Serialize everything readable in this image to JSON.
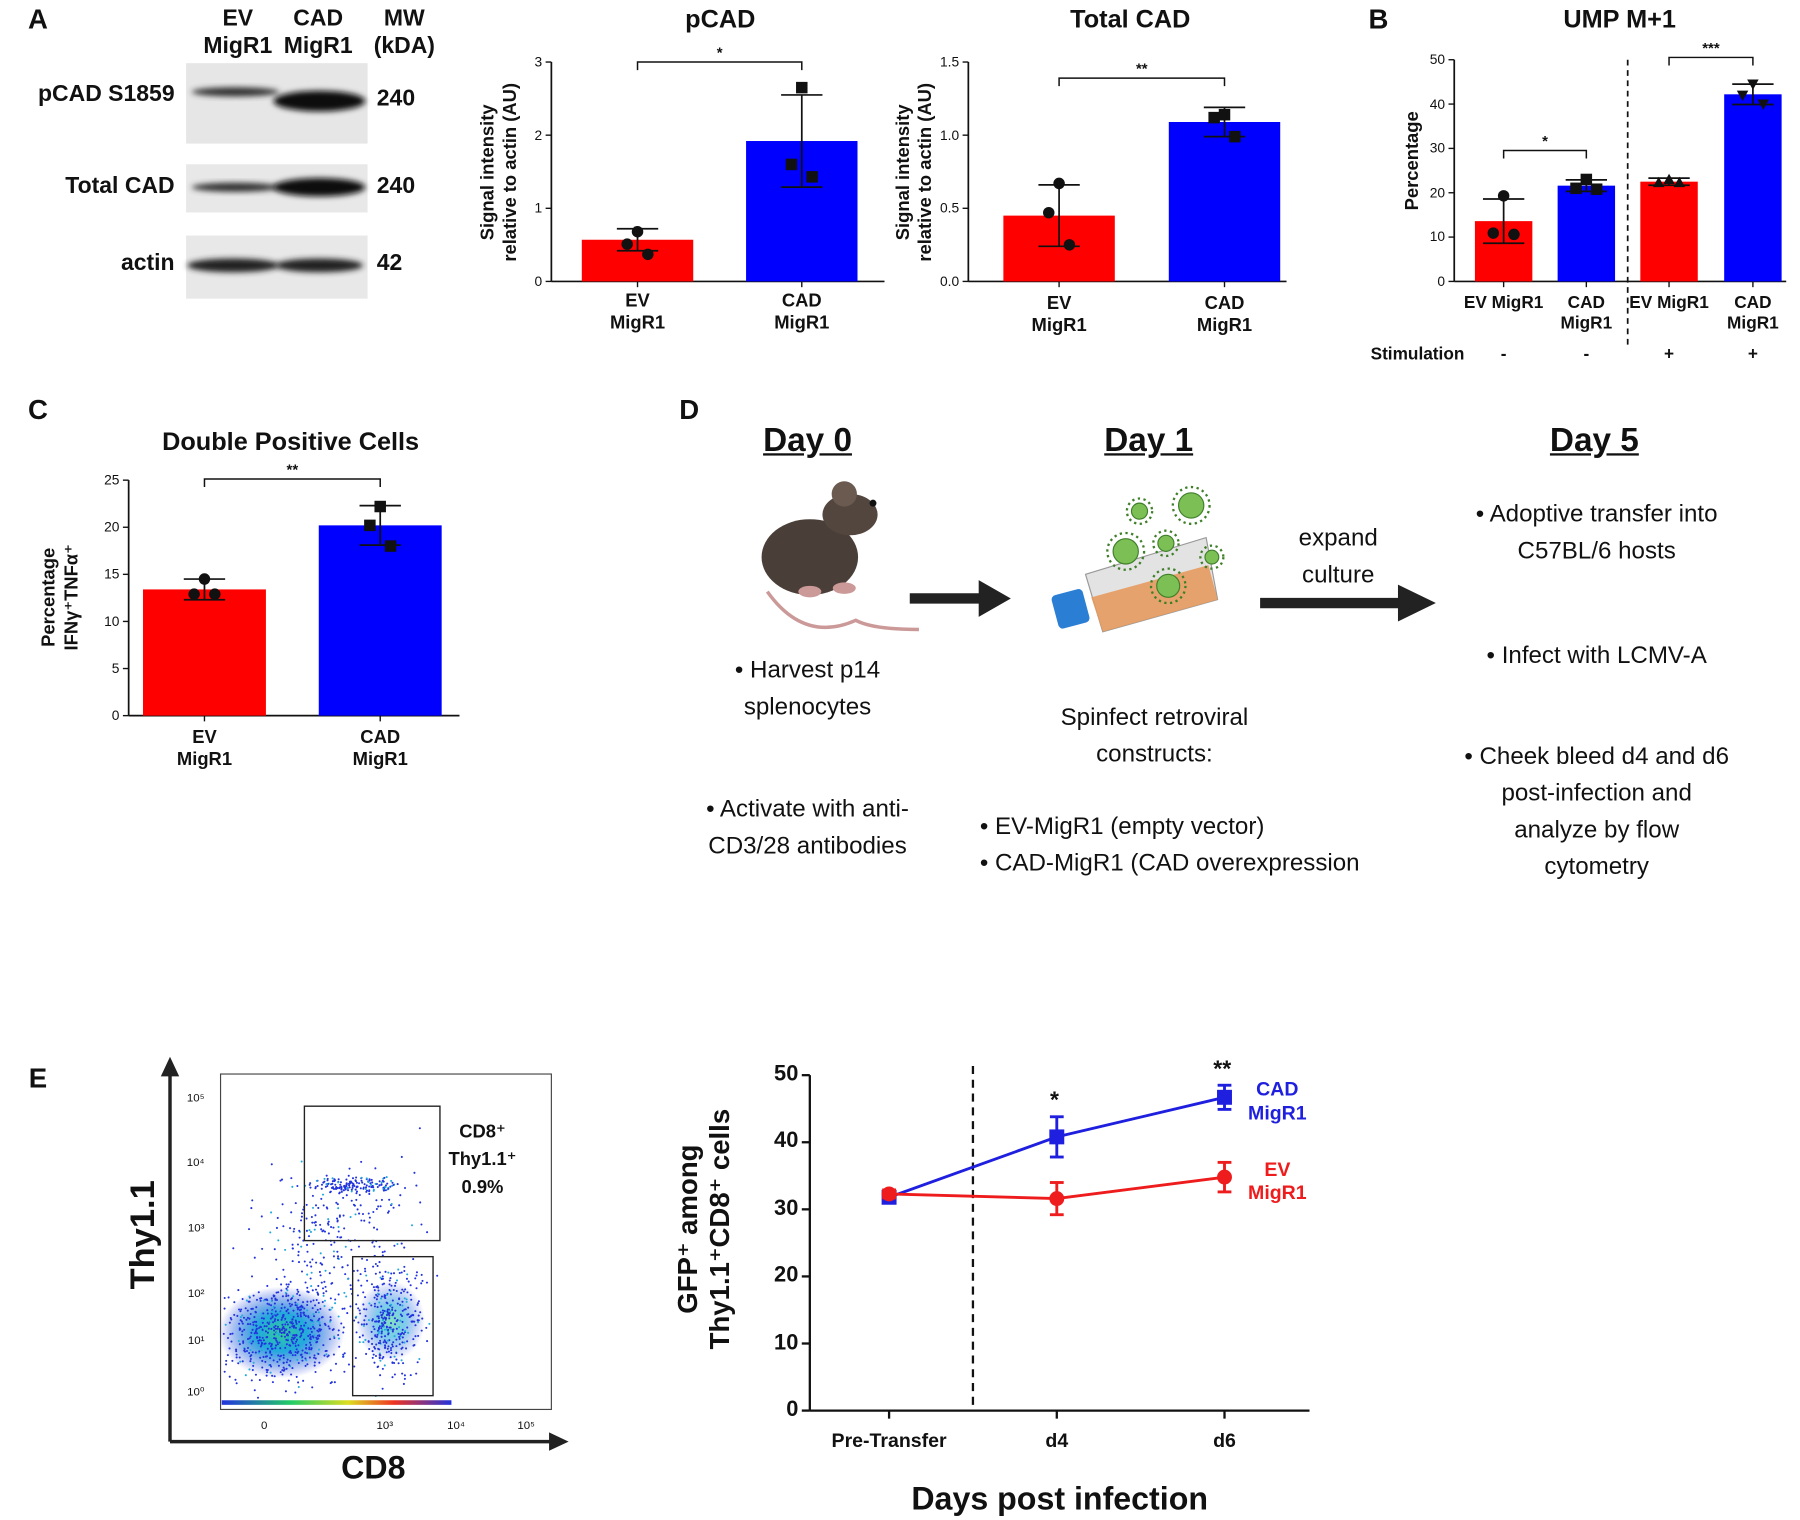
{
  "panel_letters": [
    "A",
    "B",
    "C",
    "D",
    "E"
  ],
  "blot": {
    "lanes": [
      "EV MigR1",
      "CAD MigR1"
    ],
    "mw_header": "MW (kDA)",
    "rows": [
      {
        "label": "pCAD S1859",
        "mw": 240
      },
      {
        "label": "Total CAD",
        "mw": 240
      },
      {
        "label": "actin",
        "mw": 42
      }
    ]
  },
  "chart_data": [
    {
      "type": "bar",
      "title": "pCAD",
      "ylabel": [
        "Signal intensity",
        "relative to actin (AU)"
      ],
      "categories": [
        "EV MigR1",
        "CAD MigR1"
      ],
      "values": [
        0.57,
        1.92
      ],
      "errors": [
        0.15,
        0.63
      ],
      "points": [
        [
          0.68,
          0.51,
          0.37
        ],
        [
          2.65,
          1.6,
          1.43
        ]
      ],
      "markers": [
        "circle",
        "square"
      ],
      "colors": [
        "#ff0000",
        "#0000ff"
      ],
      "ylim": [
        0,
        3
      ],
      "yticks": [
        0,
        1,
        2,
        3
      ],
      "significance": [
        {
          "between": [
            0,
            1
          ],
          "label": "*"
        }
      ]
    },
    {
      "type": "bar",
      "title": "Total CAD",
      "ylabel": [
        "Signal intensity",
        "relative to actin (AU)"
      ],
      "categories": [
        "EV MigR1",
        "CAD MigR1"
      ],
      "values": [
        0.45,
        1.09
      ],
      "errors": [
        0.21,
        0.1
      ],
      "points": [
        [
          0.67,
          0.47,
          0.25
        ],
        [
          1.14,
          1.12,
          0.99
        ]
      ],
      "markers": [
        "circle",
        "square"
      ],
      "colors": [
        "#ff0000",
        "#0000ff"
      ],
      "ylim": [
        0,
        1.5
      ],
      "yticks": [
        {
          "value": 0,
          "label": "0.0"
        },
        0.5,
        {
          "value": 1,
          "label": "1.0"
        },
        1.5
      ],
      "significance": [
        {
          "between": [
            0,
            1
          ],
          "label": "**"
        }
      ]
    },
    {
      "type": "bar",
      "title": "UMP M+1",
      "ylabel": "Percentage",
      "categories": [
        "EV MigR1",
        "CAD MigR1",
        "EV MigR1",
        "CAD MigR1"
      ],
      "values": [
        13.6,
        21.6,
        22.5,
        42.2
      ],
      "errors": [
        5.0,
        1.3,
        0.8,
        2.3
      ],
      "points": [
        [
          19.3,
          10.9,
          10.6
        ],
        [
          23.0,
          21.0,
          20.8
        ],
        [
          23.0,
          22.3,
          22.3
        ],
        [
          44.5,
          42.0,
          40.0
        ]
      ],
      "markers": [
        "circle",
        "square",
        "triangle",
        "triangle-down"
      ],
      "colors": [
        "#ff0000",
        "#0000ff",
        "#ff0000",
        "#0000ff"
      ],
      "ylim": [
        0,
        50
      ],
      "yticks": [
        0,
        10,
        20,
        30,
        40,
        50
      ],
      "significance": [
        {
          "between": [
            0,
            1
          ],
          "label": "*"
        },
        {
          "between": [
            2,
            3
          ],
          "label": "***"
        }
      ],
      "divider_after": 1,
      "row_label": "Stimulation",
      "row_values": [
        "-",
        "-",
        "+",
        "+"
      ]
    },
    {
      "type": "bar",
      "title": "Double Positive Cells",
      "ylabel": [
        "Percentage",
        "IFNγ⁺TNFα⁺"
      ],
      "categories": [
        "EV MigR1",
        "CAD MigR1"
      ],
      "values": [
        13.4,
        20.2
      ],
      "errors": [
        1.1,
        2.1
      ],
      "points": [
        [
          14.5,
          12.9,
          12.9
        ],
        [
          22.2,
          20.2,
          18.0
        ]
      ],
      "markers": [
        "circle",
        "square"
      ],
      "colors": [
        "#ff0000",
        "#0000ff"
      ],
      "ylim": [
        0,
        25
      ],
      "yticks": [
        0,
        5,
        10,
        15,
        20,
        25
      ],
      "significance": [
        {
          "between": [
            0,
            1
          ],
          "label": "**"
        }
      ]
    },
    {
      "type": "line",
      "categories": [
        "Pre-Transfer",
        "d4",
        "d6"
      ],
      "series": [
        {
          "name": "CAD MigR1",
          "color": "#1f1fdf",
          "marker": "square",
          "values": [
            31.8,
            40.8,
            46.7
          ],
          "errors": [
            0.5,
            3.0,
            1.8
          ]
        },
        {
          "name": "EV MigR1",
          "color": "#ee1c1c",
          "marker": "circle",
          "values": [
            32.3,
            31.6,
            34.8
          ],
          "errors": [
            0.6,
            2.4,
            2.2
          ]
        }
      ],
      "ylabel": [
        "GFP⁺ among",
        "Thy1.1⁺CD8⁺ cells"
      ],
      "xlabel": "Days post infection",
      "ylim": [
        0,
        50
      ],
      "yticks": [
        0,
        10,
        20,
        30,
        40,
        50
      ],
      "annotations": [
        {
          "category": 1,
          "label": "*"
        },
        {
          "category": 2,
          "label": "**"
        }
      ],
      "divider_after": 0
    }
  ],
  "protocol": {
    "arrow_label": "expand culture",
    "columns": [
      {
        "heading": "Day 0",
        "items": [
          "• Harvest p14 splenocytes",
          "• Activate with anti-CD3/28 antibodies"
        ]
      },
      {
        "heading": "Day 1",
        "intro": "Spinfect retroviral constructs:",
        "items": [
          "• EV-MigR1 (empty vector)",
          "• CAD-MigR1 (CAD overexpression"
        ]
      },
      {
        "heading": "Day 5",
        "items": [
          "• Adoptive transfer into C57BL/6 hosts",
          "• Infect with LCMV-A",
          "• Cheek bleed d4 and d6 post-infection and analyze by flow cytometry"
        ]
      }
    ]
  },
  "flow_plot": {
    "y_label": "Thy1.1",
    "x_label": "CD8",
    "y_ticks": [
      "10⁵",
      "10⁴",
      "10³",
      "10²",
      "10¹",
      "10⁰"
    ],
    "x_ticks": [
      "0",
      "10³",
      "10⁴",
      "10⁵"
    ],
    "gate_label": [
      "CD8⁺",
      "Thy1.1⁺",
      "0.9%"
    ]
  }
}
